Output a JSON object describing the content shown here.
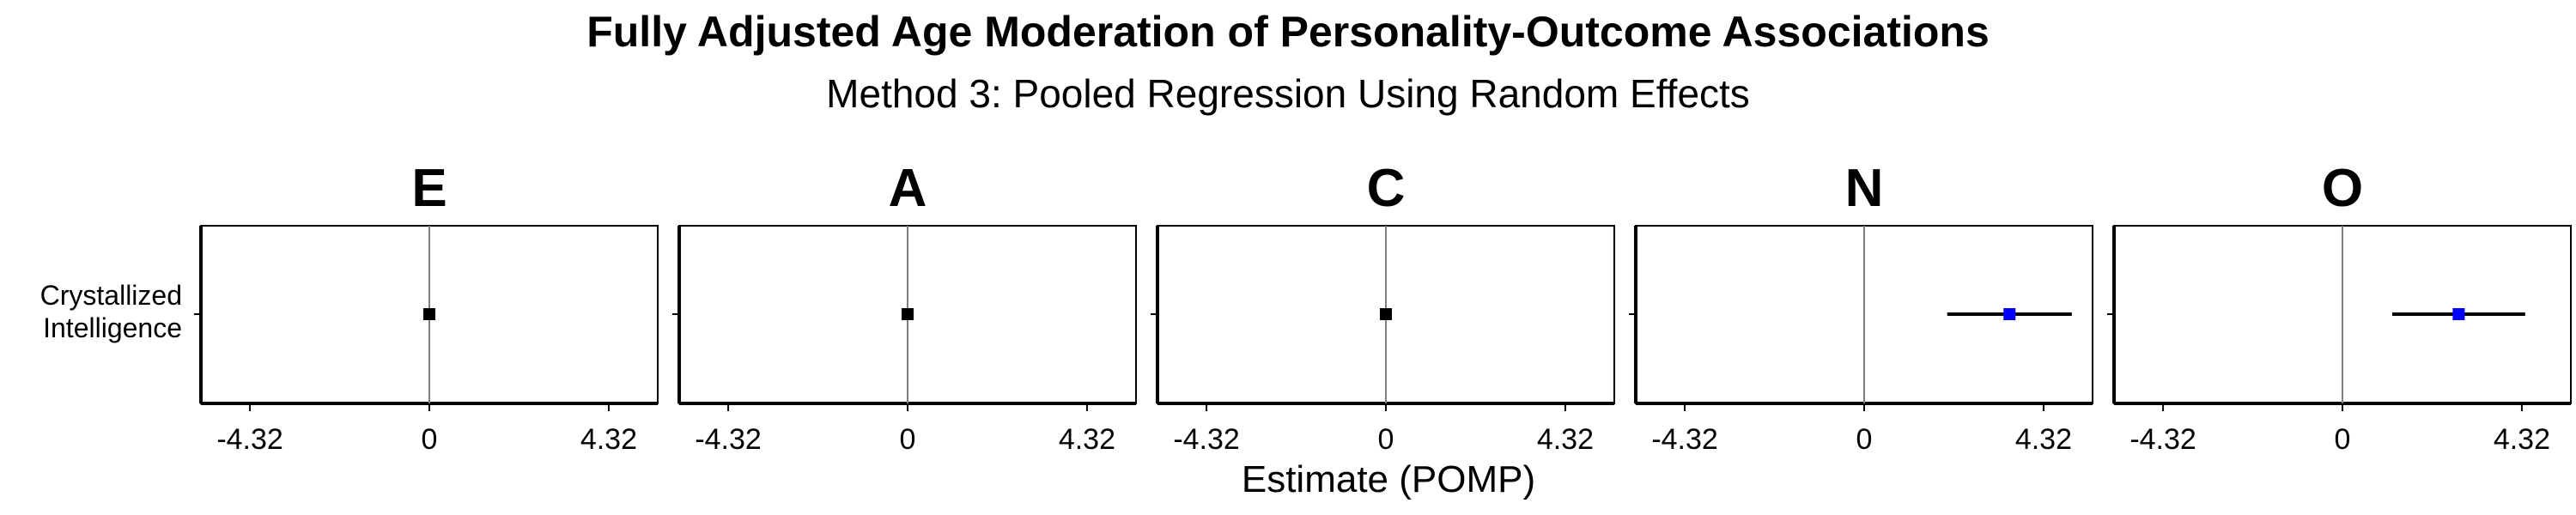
{
  "chart_data": {
    "type": "scatter",
    "title": "Fully Adjusted Age Moderation of Personality-Outcome Associations",
    "subtitle": "Method 3: Pooled Regression Using Random Effects",
    "xlabel": "Estimate (POMP)",
    "xlim": [
      -5.5,
      5.5
    ],
    "x_ticks": [
      -4.32,
      0,
      4.32
    ],
    "x_tick_labels": [
      "-4.32",
      "0",
      "4.32"
    ],
    "y_categories": [
      [
        "Crystallized",
        "Intelligence"
      ]
    ],
    "facets": [
      {
        "label": "E",
        "estimate": 0.0,
        "ci_low": 0.0,
        "ci_high": 0.0,
        "significant": false
      },
      {
        "label": "A",
        "estimate": 0.0,
        "ci_low": 0.0,
        "ci_high": 0.0,
        "significant": false
      },
      {
        "label": "C",
        "estimate": 0.0,
        "ci_low": 0.0,
        "ci_high": 0.0,
        "significant": false
      },
      {
        "label": "N",
        "estimate": 3.5,
        "ci_low": 2.0,
        "ci_high": 5.0,
        "significant": true
      },
      {
        "label": "O",
        "estimate": 2.8,
        "ci_low": 1.2,
        "ci_high": 4.4,
        "significant": true
      }
    ],
    "colors": {
      "significant": "#0000ff",
      "nonsignificant": "#000000",
      "zero_line": "#808080"
    },
    "grid": false,
    "legend": "none"
  }
}
